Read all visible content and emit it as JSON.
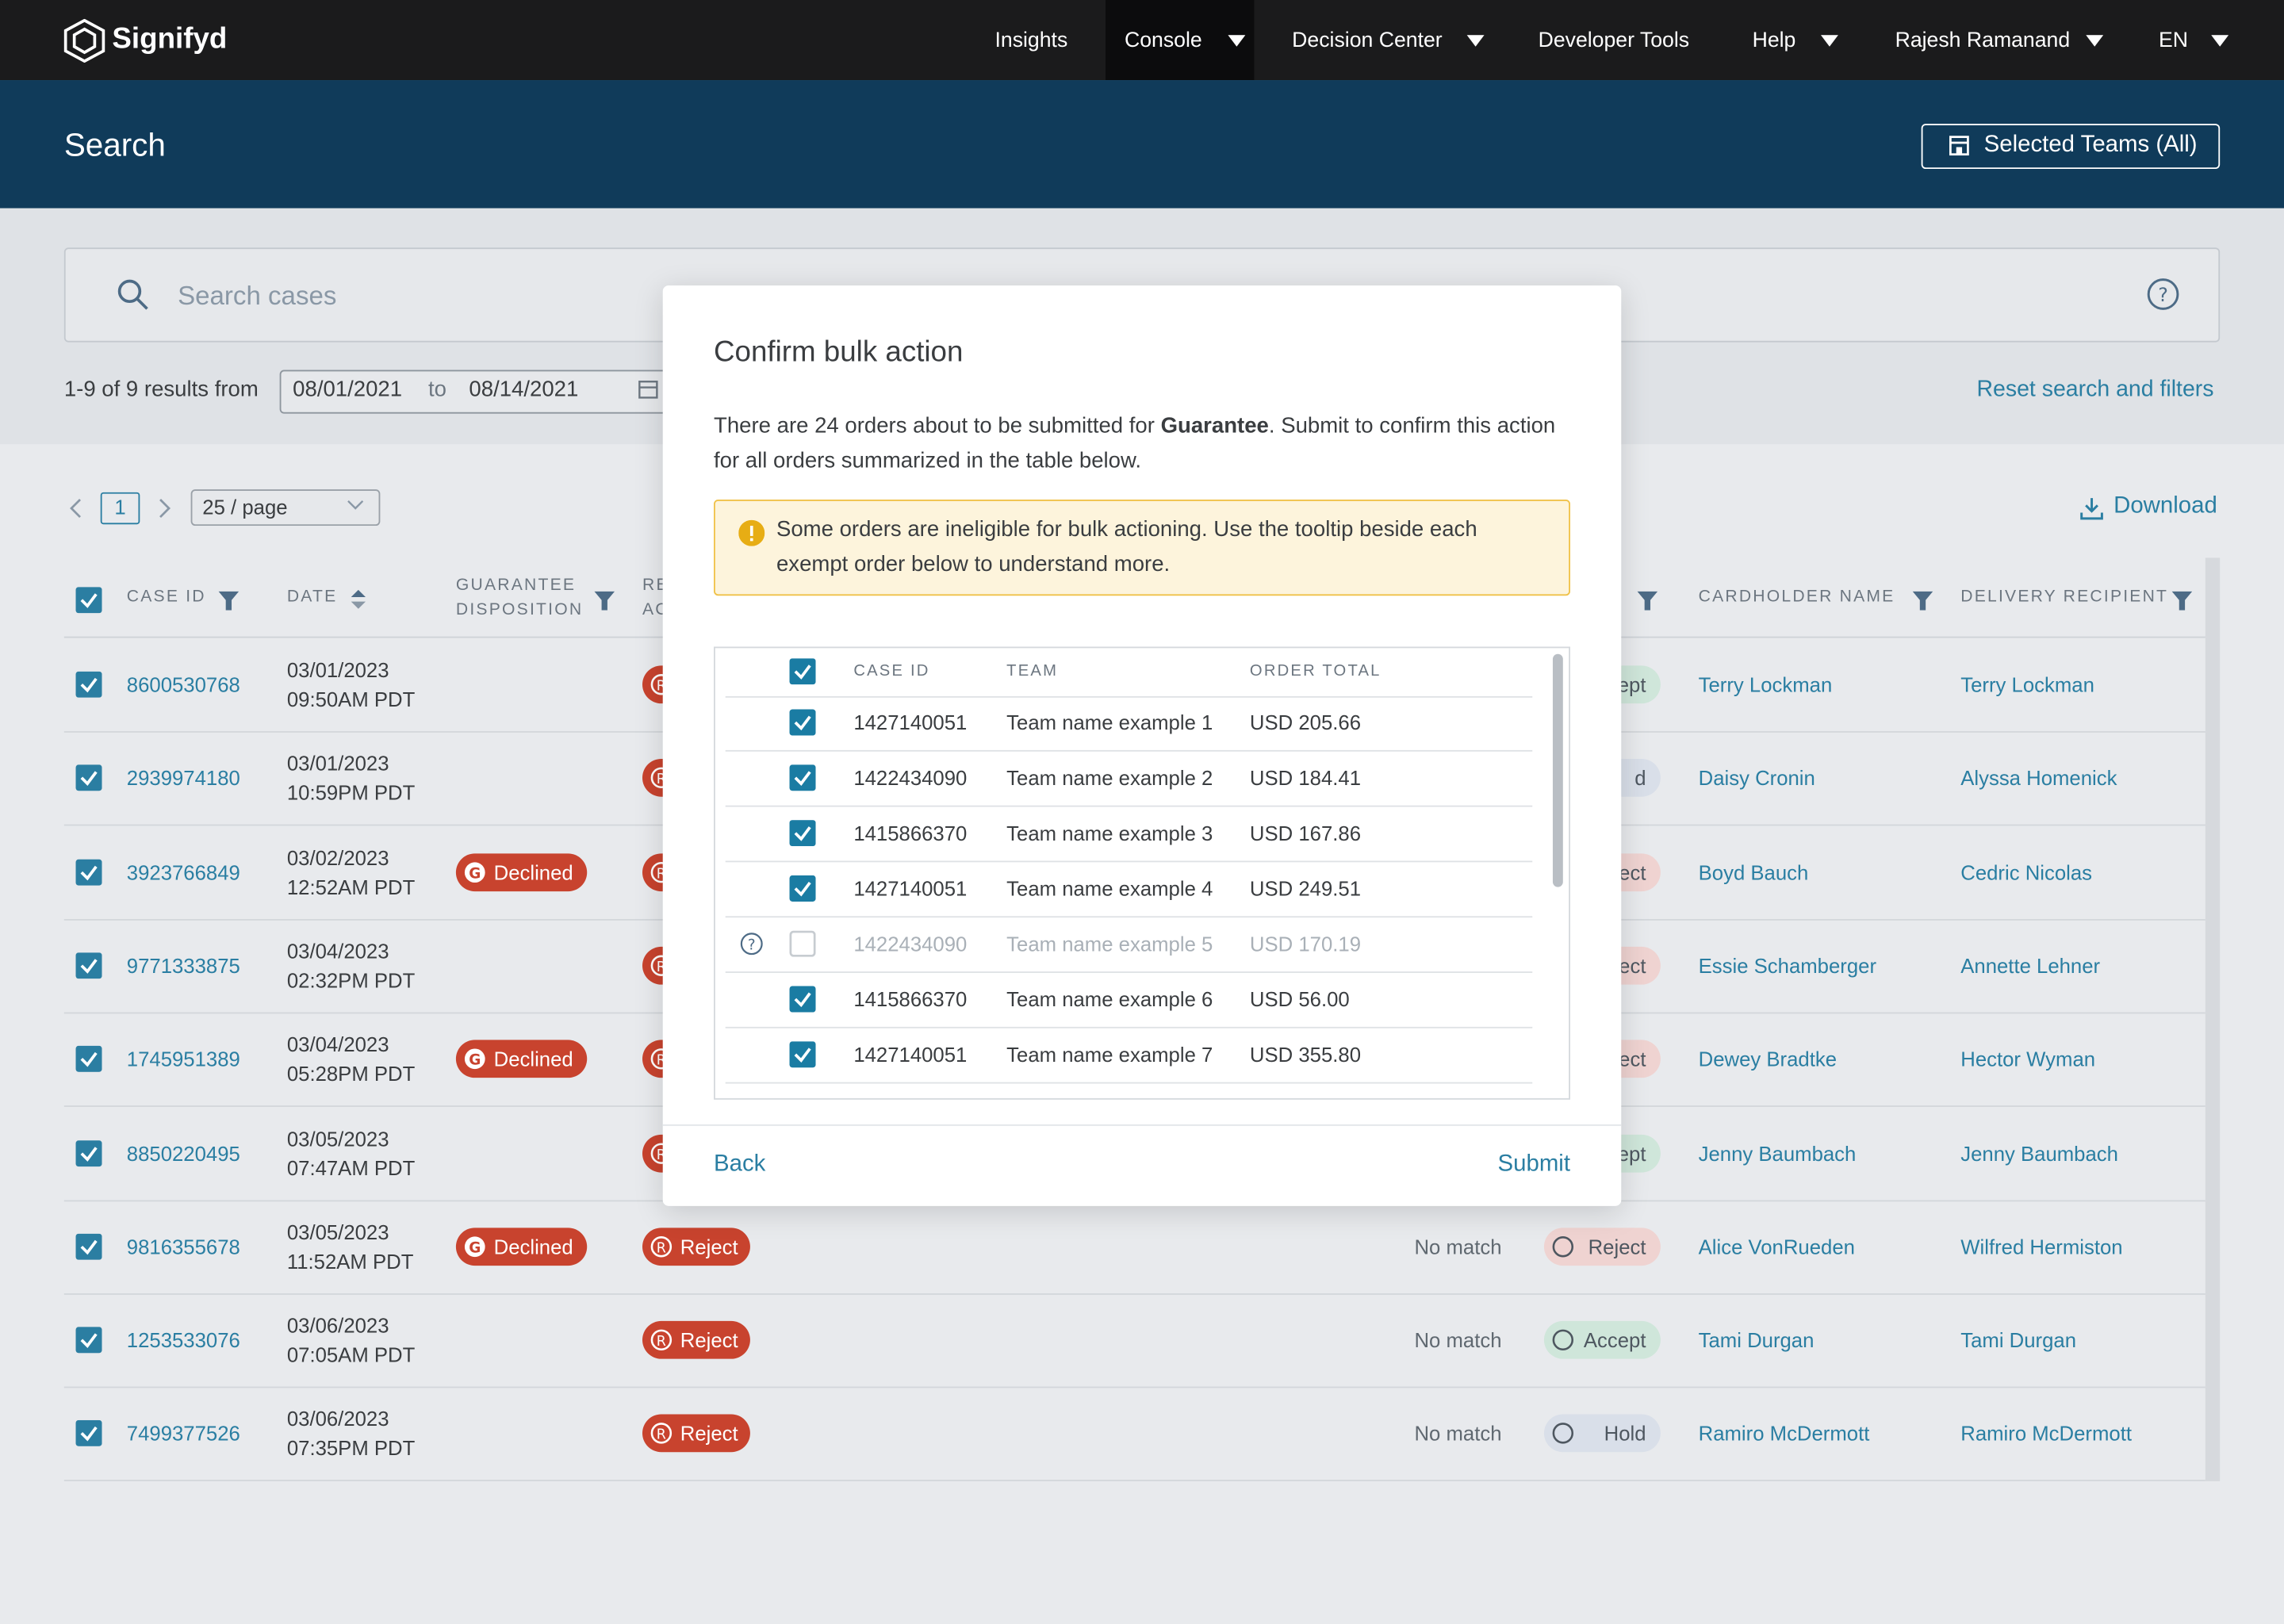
{
  "nav": {
    "logo": "Signifyd",
    "items": [
      "Insights",
      "Console",
      "Decision Center",
      "Developer Tools",
      "Help",
      "Rajesh Ramanand",
      "EN"
    ]
  },
  "header": {
    "title": "Search",
    "teams_button": "Selected Teams (All)"
  },
  "search": {
    "placeholder": "Search cases",
    "results": "1-9 of 9 results from",
    "date_from": "08/01/2021",
    "date_sep": "to",
    "date_to": "08/14/2021",
    "reset": "Reset search and filters"
  },
  "pagination": {
    "page": "1",
    "page_size": "25 / page",
    "download": "Download"
  },
  "table": {
    "columns": [
      "CASE ID",
      "DATE",
      "GUARANTEE DISPOSITION",
      "RE AC",
      "CARDHOLDER NAME",
      "DELIVERY RECIPIENT"
    ],
    "rows": [
      {
        "case_id": "8600530768",
        "date": "03/01/2023",
        "time": "09:50AM PDT",
        "guarantee": null,
        "recommended": null,
        "match": null,
        "policy": "ept",
        "policy_color": "#cfe6da",
        "cardholder": "Terry Lockman",
        "recipient": "Terry Lockman"
      },
      {
        "case_id": "2939974180",
        "date": "03/01/2023",
        "time": "10:59PM PDT",
        "guarantee": null,
        "recommended": null,
        "match": null,
        "policy": "d",
        "policy_color": "#d9dfe9",
        "cardholder": "Daisy Cronin",
        "recipient": "Alyssa Homenick"
      },
      {
        "case_id": "3923766849",
        "date": "03/02/2023",
        "time": "12:52AM PDT",
        "guarantee": "Declined",
        "recommended": null,
        "match": null,
        "policy": "ect",
        "policy_color": "#efd3d1",
        "cardholder": "Boyd Bauch",
        "recipient": "Cedric Nicolas"
      },
      {
        "case_id": "9771333875",
        "date": "03/04/2023",
        "time": "02:32PM PDT",
        "guarantee": null,
        "recommended": null,
        "match": null,
        "policy": "ect",
        "policy_color": "#efd3d1",
        "cardholder": "Essie Schamberger",
        "recipient": "Annette Lehner"
      },
      {
        "case_id": "1745951389",
        "date": "03/04/2023",
        "time": "05:28PM PDT",
        "guarantee": "Declined",
        "recommended": null,
        "match": null,
        "policy": "ect",
        "policy_color": "#efd3d1",
        "cardholder": "Dewey Bradtke",
        "recipient": "Hector Wyman"
      },
      {
        "case_id": "8850220495",
        "date": "03/05/2023",
        "time": "07:47AM PDT",
        "guarantee": null,
        "recommended": null,
        "match": null,
        "policy": "ept",
        "policy_color": "#cfe6da",
        "cardholder": "Jenny Baumbach",
        "recipient": "Jenny Baumbach"
      },
      {
        "case_id": "9816355678",
        "date": "03/05/2023",
        "time": "11:52AM PDT",
        "guarantee": "Declined",
        "recommended": "Reject",
        "match": "No match",
        "policy": "Reject",
        "policy_color": "#efd3d1",
        "cardholder": "Alice VonRueden",
        "recipient": "Wilfred Hermiston"
      },
      {
        "case_id": "1253533076",
        "date": "03/06/2023",
        "time": "07:05AM PDT",
        "guarantee": null,
        "recommended": "Reject",
        "match": "No match",
        "policy": "Accept",
        "policy_color": "#cfe6da",
        "cardholder": "Tami Durgan",
        "recipient": "Tami Durgan"
      },
      {
        "case_id": "7499377526",
        "date": "03/06/2023",
        "time": "07:35PM PDT",
        "guarantee": null,
        "recommended": "Reject",
        "match": "No match",
        "policy": "Hold",
        "policy_color": "#d9dfe9",
        "cardholder": "Ramiro McDermott",
        "recipient": "Ramiro McDermott"
      }
    ]
  },
  "modal": {
    "title": "Confirm bulk action",
    "intro": [
      "There are 24 orders about to be submitted for ",
      "Guarantee",
      ". Submit to confirm this action for all orders summarized in the table below."
    ],
    "warning": "Some orders are ineligible for bulk actioning. Use the tooltip beside each exempt order below to understand more.",
    "columns": [
      "CASE ID",
      "TEAM",
      "ORDER TOTAL"
    ],
    "rows": [
      {
        "case_id": "1427140051",
        "team": "Team name example 1",
        "total": "USD 205.66",
        "eligible": true
      },
      {
        "case_id": "1422434090",
        "team": "Team name example 2",
        "total": "USD 184.41",
        "eligible": true
      },
      {
        "case_id": "1415866370",
        "team": "Team name example 3",
        "total": "USD 167.86",
        "eligible": true
      },
      {
        "case_id": "1427140051",
        "team": "Team name example 4",
        "total": "USD 249.51",
        "eligible": true
      },
      {
        "case_id": "1422434090",
        "team": "Team name example 5",
        "total": "USD 170.19",
        "eligible": false
      },
      {
        "case_id": "1415866370",
        "team": "Team name example 6",
        "total": "USD 56.00",
        "eligible": true
      },
      {
        "case_id": "1427140051",
        "team": "Team name example 7",
        "total": "USD 355.80",
        "eligible": true
      }
    ],
    "back": "Back",
    "submit": "Submit"
  }
}
